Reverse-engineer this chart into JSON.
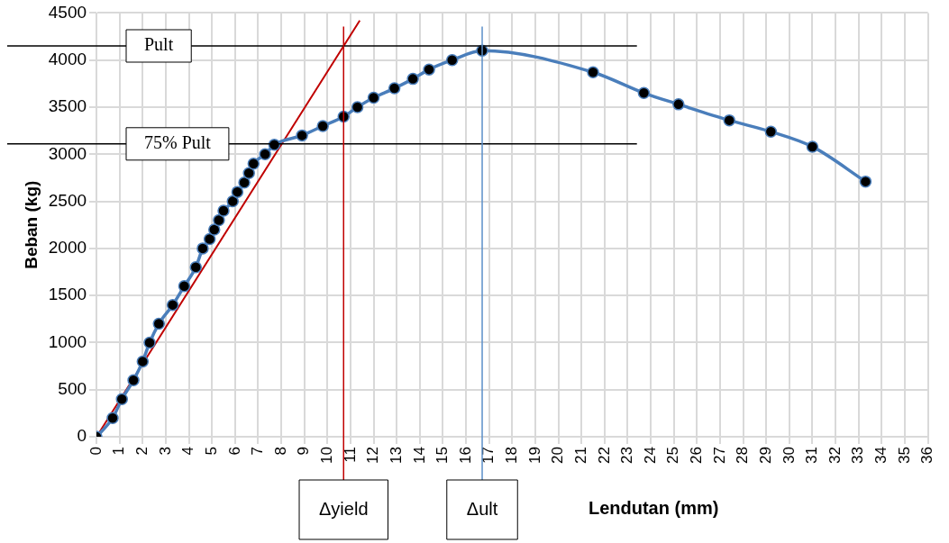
{
  "chart_data": {
    "type": "line",
    "xlabel": "Lendutan (mm)",
    "ylabel": "Beban (kg)",
    "xlim": [
      0,
      36
    ],
    "xticks": [
      0,
      1,
      2,
      3,
      4,
      5,
      6,
      7,
      8,
      9,
      10,
      11,
      12,
      13,
      14,
      15,
      16,
      17,
      18,
      19,
      20,
      21,
      22,
      23,
      24,
      25,
      26,
      27,
      28,
      29,
      30,
      31,
      32,
      33,
      34,
      35,
      36
    ],
    "ylim": [
      0,
      4500
    ],
    "yticks": [
      0,
      500,
      1000,
      1500,
      2000,
      2500,
      3000,
      3500,
      4000,
      4500
    ],
    "grid": true,
    "legend": false,
    "marker": "circle",
    "x": [
      0,
      0.7,
      1.1,
      1.6,
      2.0,
      2.3,
      2.7,
      3.3,
      3.8,
      4.3,
      4.6,
      4.9,
      5.1,
      5.3,
      5.5,
      5.9,
      6.1,
      6.4,
      6.6,
      6.8,
      7.3,
      7.7,
      8.9,
      9.8,
      10.7,
      11.3,
      12.0,
      12.9,
      13.7,
      14.4,
      15.4,
      16.7,
      21.5,
      23.7,
      25.2,
      27.4,
      29.2,
      31.0,
      33.3
    ],
    "series": [
      {
        "color": "#4a7ebb",
        "values": [
          0,
          200,
          400,
          600,
          800,
          1000,
          1200,
          1400,
          1600,
          1800,
          2000,
          2100,
          2200,
          2300,
          2400,
          2500,
          2600,
          2700,
          2800,
          2900,
          3000,
          3100,
          3200,
          3300,
          3400,
          3500,
          3600,
          3700,
          3800,
          3900,
          4000,
          4100,
          3870,
          3650,
          3530,
          3360,
          3240,
          3080,
          2710
        ]
      },
      {
        "type": "line",
        "color": "#c00000",
        "marker": "none",
        "x": [
          0,
          11.4
        ],
        "values": [
          0,
          4420
        ]
      }
    ],
    "ref_lines": [
      {
        "axis": "y",
        "value": 4150,
        "label": "Pult",
        "color": "#000000"
      },
      {
        "axis": "y",
        "value": 3110,
        "label": "75% Pult",
        "color": "#000000"
      },
      {
        "axis": "x",
        "value": 10.7,
        "label": "Δyield",
        "color": "#c00000"
      },
      {
        "axis": "x",
        "value": 16.7,
        "label": "Δult",
        "color": "#5b8fc9"
      }
    ]
  }
}
